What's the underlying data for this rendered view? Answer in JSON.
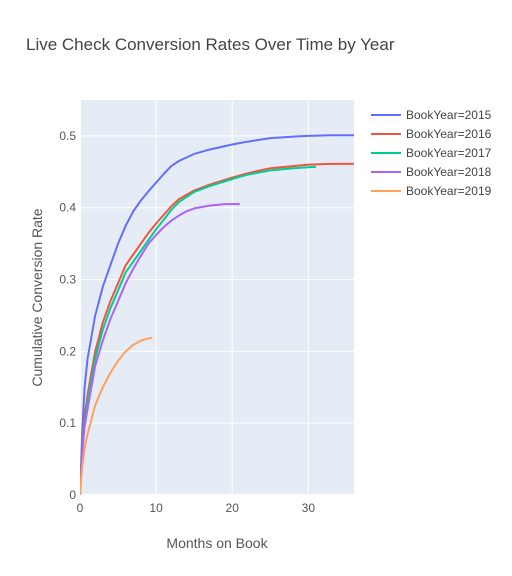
{
  "chart_data": {
    "type": "line",
    "title": "Live Check Conversion Rates Over Time by Year",
    "xlabel": "Months on Book",
    "ylabel": "Cumulative Conversion Rate",
    "xlim": [
      0,
      36
    ],
    "ylim": [
      0,
      0.55
    ],
    "x_ticks": [
      0,
      10,
      20,
      30
    ],
    "y_ticks": [
      0,
      0.1,
      0.2,
      0.3,
      0.4,
      0.5
    ],
    "grid": true,
    "legend_position": "top-right",
    "series": [
      {
        "name": "BookYear=2015",
        "color": "#636efa",
        "x": [
          0,
          0.3,
          0.6,
          1,
          1.5,
          2,
          3,
          4,
          5,
          6,
          7,
          8,
          9,
          10,
          11,
          12,
          13,
          15,
          17,
          20,
          22,
          25,
          28,
          30,
          33,
          36
        ],
        "y": [
          0,
          0.09,
          0.15,
          0.19,
          0.22,
          0.25,
          0.29,
          0.32,
          0.35,
          0.375,
          0.395,
          0.41,
          0.423,
          0.435,
          0.447,
          0.458,
          0.465,
          0.475,
          0.481,
          0.488,
          0.492,
          0.497,
          0.499,
          0.5,
          0.501,
          0.501
        ]
      },
      {
        "name": "BookYear=2016",
        "color": "#ef553b",
        "x": [
          0,
          0.3,
          0.6,
          1,
          1.5,
          2,
          3,
          4,
          5,
          6,
          7,
          8,
          9,
          10,
          11,
          12,
          13,
          15,
          17,
          20,
          22,
          25,
          28,
          30,
          33,
          36
        ],
        "y": [
          0,
          0.07,
          0.11,
          0.14,
          0.17,
          0.2,
          0.24,
          0.27,
          0.295,
          0.32,
          0.335,
          0.35,
          0.365,
          0.378,
          0.39,
          0.402,
          0.412,
          0.424,
          0.432,
          0.442,
          0.448,
          0.455,
          0.458,
          0.46,
          0.461,
          0.461
        ]
      },
      {
        "name": "BookYear=2017",
        "color": "#00cc96",
        "x": [
          0,
          0.3,
          0.6,
          1,
          1.5,
          2,
          3,
          4,
          5,
          6,
          7,
          8,
          9,
          10,
          11,
          12,
          13,
          15,
          17,
          20,
          22,
          25,
          28,
          31
        ],
        "y": [
          0,
          0.065,
          0.1,
          0.13,
          0.16,
          0.19,
          0.23,
          0.26,
          0.285,
          0.31,
          0.325,
          0.34,
          0.355,
          0.37,
          0.383,
          0.397,
          0.408,
          0.422,
          0.43,
          0.44,
          0.446,
          0.452,
          0.455,
          0.457
        ]
      },
      {
        "name": "BookYear=2018",
        "color": "#ab63fa",
        "x": [
          0,
          0.3,
          0.6,
          1,
          1.5,
          2,
          3,
          4,
          5,
          6,
          7,
          8,
          9,
          10,
          11,
          12,
          13,
          14,
          15,
          16,
          17,
          18,
          19,
          20,
          21
        ],
        "y": [
          0,
          0.06,
          0.095,
          0.12,
          0.15,
          0.18,
          0.215,
          0.245,
          0.27,
          0.295,
          0.315,
          0.333,
          0.35,
          0.362,
          0.373,
          0.382,
          0.389,
          0.395,
          0.399,
          0.401,
          0.403,
          0.404,
          0.405,
          0.405,
          0.405
        ]
      },
      {
        "name": "BookYear=2019",
        "color": "#ffa15a",
        "x": [
          0,
          0.3,
          0.6,
          1,
          1.5,
          2,
          3,
          4,
          5,
          6,
          7,
          8,
          9,
          9.5
        ],
        "y": [
          0,
          0.04,
          0.065,
          0.085,
          0.105,
          0.125,
          0.15,
          0.17,
          0.187,
          0.2,
          0.209,
          0.215,
          0.218,
          0.219
        ]
      }
    ]
  }
}
